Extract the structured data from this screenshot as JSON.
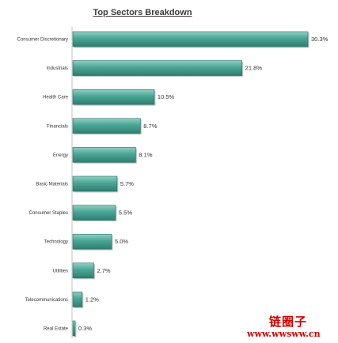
{
  "chart_data": {
    "type": "bar",
    "orientation": "horizontal",
    "title": "Top Sectors Breakdown",
    "categories": [
      "Consumer Discretionary",
      "Industrials",
      "Health Care",
      "Financials",
      "Energy",
      "Basic Materials",
      "Consumer Staples",
      "Technology",
      "Utilities",
      "Telecommunications",
      "Real Estate"
    ],
    "values": [
      30.3,
      21.8,
      10.5,
      8.7,
      8.1,
      5.7,
      5.5,
      5.0,
      2.7,
      1.2,
      0.3
    ],
    "value_labels": [
      "30.3%",
      "21.8%",
      "10.5%",
      "8.7%",
      "8.1%",
      "5.7%",
      "5.5%",
      "5.0%",
      "2.7%",
      "1.2%",
      "0.3%"
    ],
    "xlim": [
      0,
      30.3
    ],
    "grid": false,
    "legend": "none",
    "bar_color": "#4aa595"
  },
  "watermark": {
    "chinese": "链圈子",
    "url": "www.wwsww.cn"
  }
}
